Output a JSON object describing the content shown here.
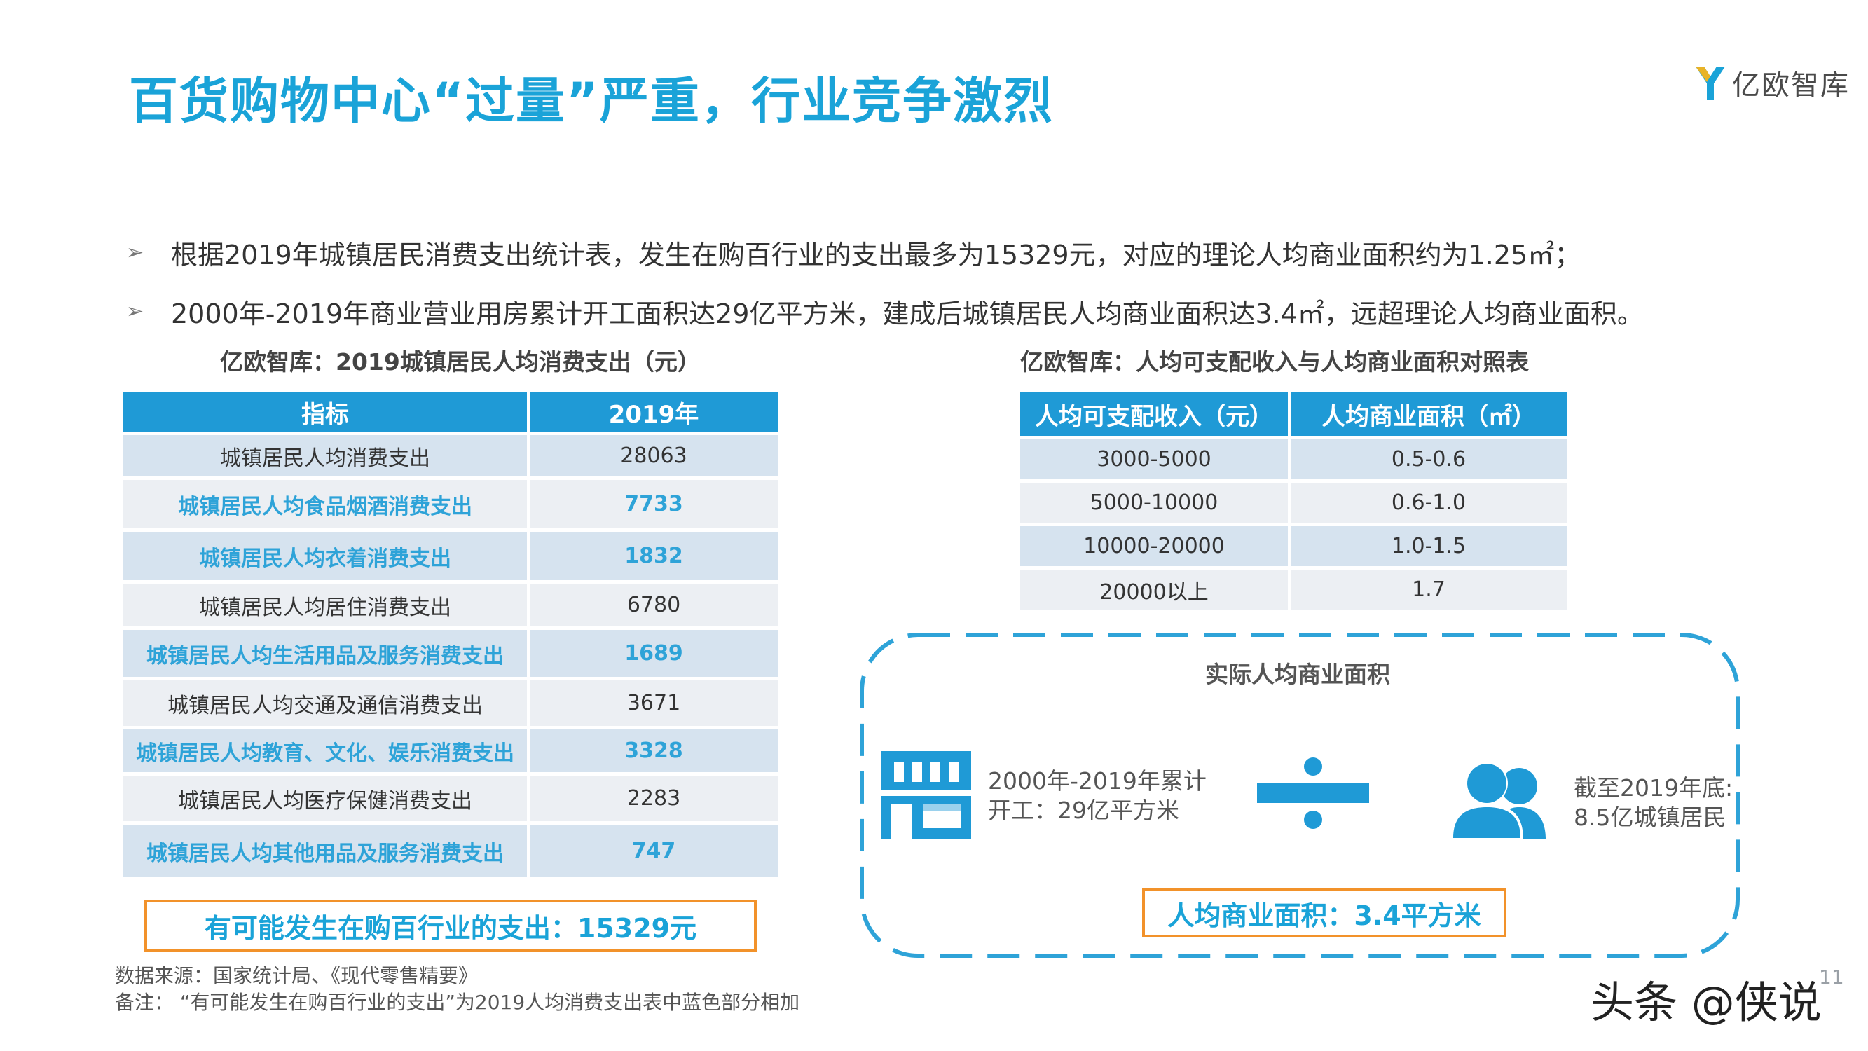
{
  "title": "百货购物中心“过量”严重，行业竞争激烈",
  "logo_text": "亿欧智库",
  "bullets": [
    "根据2019年城镇居民消费支出统计表，发生在购百行业的支出最多为15329元，对应的理论人均商业面积约为1.25㎡；",
    "2000年-2019年商业营业用房累计开工面积达29亿平方米，建成后城镇居民人均商业面积达3.4㎡，远超理论人均商业面积。"
  ],
  "left_table": {
    "caption": "亿欧智库：2019城镇居民人均消费支出（元）",
    "headers": [
      "指标",
      "2019年"
    ],
    "rows": [
      {
        "label": "城镇居民人均消费支出",
        "value": "28063",
        "highlight": false
      },
      {
        "label": "城镇居民人均食品烟酒消费支出",
        "value": "7733",
        "highlight": true
      },
      {
        "label": "城镇居民人均衣着消费支出",
        "value": "1832",
        "highlight": true
      },
      {
        "label": "城镇居民人均居住消费支出",
        "value": "6780",
        "highlight": false
      },
      {
        "label": "城镇居民人均生活用品及服务消费支出",
        "value": "1689",
        "highlight": true
      },
      {
        "label": "城镇居民人均交通及通信消费支出",
        "value": "3671",
        "highlight": false
      },
      {
        "label": "城镇居民人均教育、文化、娱乐消费支出",
        "value": "3328",
        "highlight": true
      },
      {
        "label": "城镇居民人均医疗保健消费支出",
        "value": "2283",
        "highlight": false
      },
      {
        "label": "城镇居民人均其他用品及服务消费支出",
        "value": "747",
        "highlight": true
      }
    ],
    "summary": "有可能发生在购百行业的支出：15329元"
  },
  "right_table": {
    "caption": "亿欧智库：人均可支配收入与人均商业面积对照表",
    "headers": [
      "人均可支配收入（元）",
      "人均商业面积（㎡）"
    ],
    "rows": [
      [
        "3000-5000",
        "0.5-0.6"
      ],
      [
        "5000-10000",
        "0.6-1.0"
      ],
      [
        "10000-20000",
        "1.0-1.5"
      ],
      [
        "20000以上",
        "1.7"
      ]
    ]
  },
  "actual_area": {
    "title": "实际人均商业面积",
    "left_line1": "2000年-2019年累计",
    "left_line2": "开工：29亿平方米",
    "right_line1": "截至2019年底:",
    "right_line2": "8.5亿城镇居民",
    "result": "人均商业面积：3.4平方米",
    "icons": [
      "building-icon",
      "divide-icon",
      "people-icon"
    ]
  },
  "footer": {
    "source": "数据来源：国家统计局、《现代零售精要》",
    "note": "备注：  “有可能发生在购百行业的支出”为2019人均消费支出表中蓝色部分相加",
    "page_number": "11",
    "watermark": "头条 @侠说"
  },
  "colors": {
    "accent_blue": "#1aa3d8",
    "header_blue": "#1f9ad6",
    "orange": "#f2922a",
    "row_light": "#eceff3",
    "row_dark": "#d6e3ef"
  }
}
